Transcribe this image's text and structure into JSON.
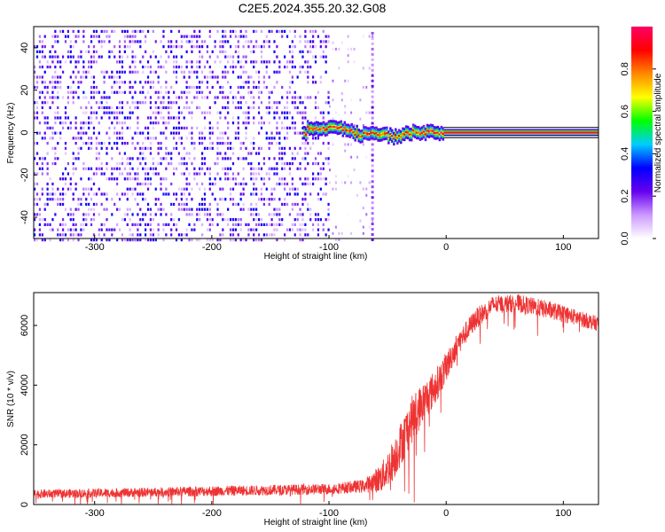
{
  "title": "C2E5.2024.355.20.32.G08",
  "chart_data": [
    {
      "type": "heatmap",
      "xlabel": "Height of straight line (km)",
      "ylabel": "Frequency (Hz)",
      "xlim": [
        -352,
        130
      ],
      "ylim": [
        -50,
        50
      ],
      "xticks": [
        -300,
        -200,
        -100,
        0,
        100
      ],
      "yticks": [
        -40,
        -20,
        0,
        20,
        40
      ],
      "colorbar": {
        "label": "Normalized spectral amplitude",
        "range": [
          0,
          1
        ],
        "ticks": [
          0.0,
          0.2,
          0.4,
          0.6,
          0.8
        ],
        "tick_labels": [
          "0.0",
          "0.2",
          "0.4",
          "0.6",
          "0.8"
        ],
        "colormap": [
          "#ffffff",
          "#cc99ff",
          "#6600ee",
          "#0000ff",
          "#00ccff",
          "#00ff00",
          "#ffff00",
          "#ff8800",
          "#ff0000",
          "#ff0066"
        ]
      },
      "regions": {
        "noise": {
          "x": [
            -352,
            -100
          ],
          "amplitude": [
            0.05,
            0.35
          ]
        },
        "transition": {
          "x": [
            -100,
            -62
          ],
          "amplitude": [
            0.0,
            0.15
          ]
        },
        "signal_track": [
          {
            "x": -120,
            "freq": 2
          },
          {
            "x": -95,
            "freq": 2
          },
          {
            "x": -85,
            "freq": 1.5
          },
          {
            "x": -75,
            "freq": -1
          },
          {
            "x": -60,
            "freq": 0
          },
          {
            "x": -45,
            "freq": -2
          },
          {
            "x": -30,
            "freq": 0
          },
          {
            "x": -20,
            "freq": 0
          },
          {
            "x": 0,
            "freq": 0
          },
          {
            "x": 130,
            "freq": 0
          }
        ]
      }
    },
    {
      "type": "line",
      "xlabel": "Height of straight line (km)",
      "ylabel": "SNR (10 * v/v)",
      "xlim": [
        -352,
        130
      ],
      "ylim": [
        0,
        7100
      ],
      "xticks": [
        -300,
        -200,
        -100,
        0,
        100
      ],
      "yticks": [
        0,
        2000,
        4000,
        6000
      ],
      "color": "#ee3333",
      "envelope": [
        {
          "x": -352,
          "y": 350,
          "noise": 150
        },
        {
          "x": -300,
          "y": 380,
          "noise": 150
        },
        {
          "x": -200,
          "y": 450,
          "noise": 170
        },
        {
          "x": -100,
          "y": 520,
          "noise": 180
        },
        {
          "x": -70,
          "y": 620,
          "noise": 220
        },
        {
          "x": -55,
          "y": 900,
          "noise": 500
        },
        {
          "x": -45,
          "y": 1500,
          "noise": 700
        },
        {
          "x": -30,
          "y": 2800,
          "noise": 800
        },
        {
          "x": -20,
          "y": 3400,
          "noise": 700
        },
        {
          "x": -10,
          "y": 3900,
          "noise": 600
        },
        {
          "x": 0,
          "y": 4600,
          "noise": 500
        },
        {
          "x": 10,
          "y": 5400,
          "noise": 400
        },
        {
          "x": 25,
          "y": 6200,
          "noise": 350
        },
        {
          "x": 40,
          "y": 6700,
          "noise": 300
        },
        {
          "x": 60,
          "y": 6750,
          "noise": 300
        },
        {
          "x": 90,
          "y": 6500,
          "noise": 300
        },
        {
          "x": 130,
          "y": 6050,
          "noise": 250
        }
      ]
    }
  ]
}
